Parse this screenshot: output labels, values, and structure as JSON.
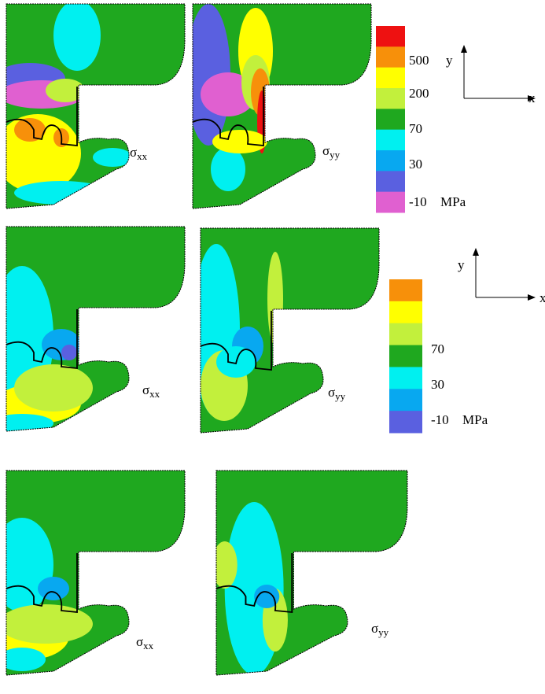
{
  "rows": [
    {
      "left": {
        "symbol": "σ",
        "subscript": "xx"
      },
      "right": {
        "symbol": "σ",
        "subscript": "yy"
      }
    },
    {
      "left": {
        "symbol": "σ",
        "subscript": "xx"
      },
      "right": {
        "symbol": "σ",
        "subscript": "yy"
      }
    },
    {
      "left": {
        "symbol": "σ",
        "subscript": "xx"
      },
      "right": {
        "symbol": "σ",
        "subscript": "yy"
      }
    }
  ],
  "legends": [
    {
      "colors": [
        "#ee1111",
        "#f7900a",
        "#ffff00",
        "#c2f03c",
        "#1fa81f",
        "#00f0f0",
        "#08a8f0",
        "#5a60e0",
        "#e060d0"
      ],
      "labels": [
        "500",
        "200",
        "70",
        "30",
        "-10"
      ],
      "unit": "MPa"
    },
    {
      "colors": [
        "#f7900a",
        "#ffff00",
        "#c2f03c",
        "#1fa81f",
        "#00f0f0",
        "#08a8f0",
        "#5a60e0"
      ],
      "labels": [
        "70",
        "30",
        "-10"
      ],
      "unit": "MPa"
    }
  ],
  "axes": [
    {
      "y": "y",
      "x": "x"
    },
    {
      "y": "y",
      "x": "x"
    }
  ]
}
